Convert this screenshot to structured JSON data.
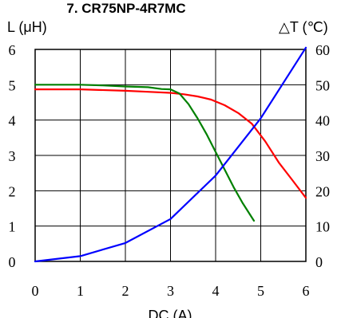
{
  "chart_data": {
    "type": "line",
    "title": "7. CR75NP-4R7MC",
    "xlabel": "DC (A)",
    "ylabel": "L (μH)",
    "y2label": "△T (℃)",
    "xlim": [
      0,
      6
    ],
    "ylim": [
      0,
      6
    ],
    "y2lim": [
      0,
      60
    ],
    "grid": true,
    "x_ticks": [
      "0",
      "1",
      "2",
      "3",
      "4",
      "5",
      "6"
    ],
    "y_ticks": [
      "0",
      "1",
      "2",
      "3",
      "4",
      "5",
      "6"
    ],
    "y2_ticks": [
      "0",
      "10",
      "20",
      "30",
      "40",
      "50",
      "60"
    ],
    "series": [
      {
        "axis": "left",
        "color": "#ff0000",
        "x": [
          0,
          1,
          2,
          2.5,
          3,
          3.3,
          3.6,
          3.9,
          4.2,
          4.5,
          4.8,
          5.1,
          5.4,
          5.7,
          6.0
        ],
        "y": [
          4.87,
          4.87,
          4.83,
          4.8,
          4.77,
          4.73,
          4.67,
          4.58,
          4.42,
          4.2,
          3.9,
          3.4,
          2.8,
          2.3,
          1.8
        ]
      },
      {
        "axis": "left",
        "color": "#008000",
        "x": [
          0,
          1,
          1.5,
          2,
          2.5,
          2.8,
          3.0,
          3.2,
          3.4,
          3.6,
          3.8,
          4.0,
          4.2,
          4.4,
          4.6,
          4.85
        ],
        "y": [
          5.0,
          5.0,
          4.98,
          4.95,
          4.93,
          4.88,
          4.87,
          4.75,
          4.45,
          4.05,
          3.6,
          3.1,
          2.6,
          2.1,
          1.65,
          1.15
        ]
      },
      {
        "axis": "right",
        "color": "#0000ff",
        "x": [
          0,
          1,
          2,
          3,
          4,
          5,
          6
        ],
        "y": [
          0,
          1.5,
          5.2,
          12,
          24.3,
          40.5,
          60.5
        ]
      }
    ]
  }
}
